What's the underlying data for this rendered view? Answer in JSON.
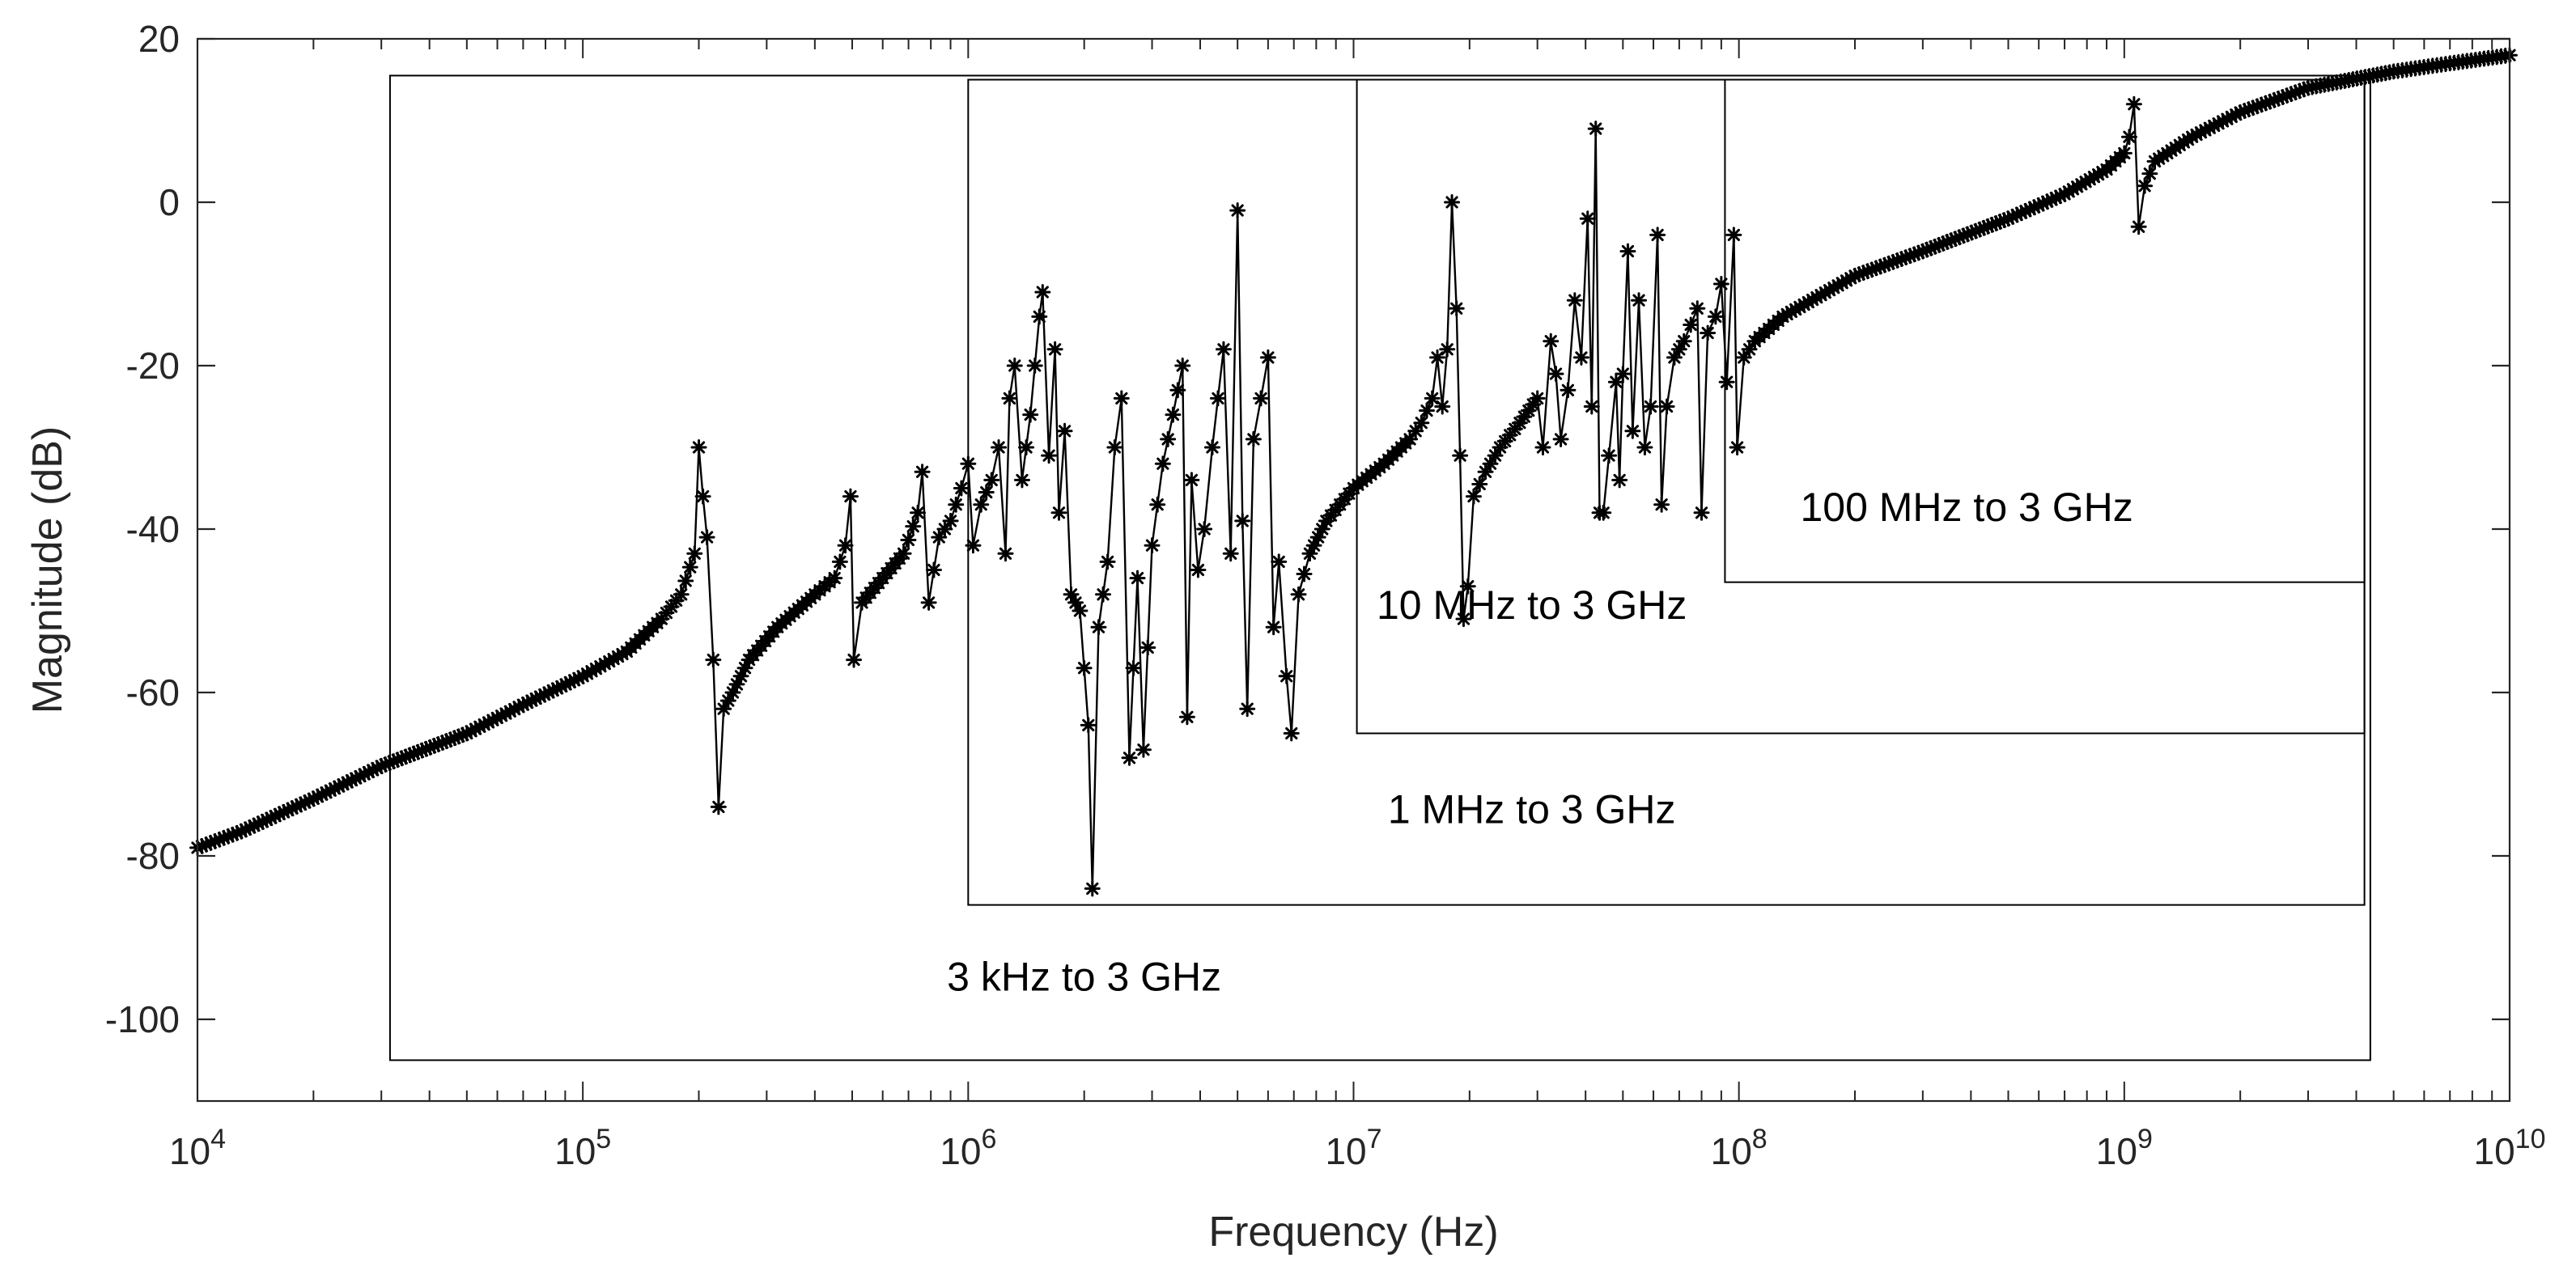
{
  "chart_data": {
    "type": "line",
    "xscale": "log",
    "xlabel": "Frequency (Hz)",
    "ylabel": "Magnitude (dB)",
    "xlim": [
      10000,
      10000000000
    ],
    "ylim": [
      -110,
      20
    ],
    "yticks": [
      20,
      0,
      -20,
      -40,
      -60,
      -80,
      -100
    ],
    "ytick_labels": [
      "20",
      "0",
      "-20",
      "-40",
      "-60",
      "-80",
      "-100"
    ],
    "xticks": [
      {
        "value": 10000,
        "base": "10",
        "exp": "4"
      },
      {
        "value": 100000,
        "base": "10",
        "exp": "5"
      },
      {
        "value": 1000000,
        "base": "10",
        "exp": "6"
      },
      {
        "value": 10000000,
        "base": "10",
        "exp": "7"
      },
      {
        "value": 100000000,
        "base": "10",
        "exp": "8"
      },
      {
        "value": 1000000000,
        "base": "10",
        "exp": "9"
      },
      {
        "value": 10000000000,
        "base": "10",
        "exp": "10"
      }
    ],
    "marker": "asterisk",
    "color": "#000000",
    "series": [
      {
        "name": "magnitude",
        "points": [
          [
            10000,
            -79
          ],
          [
            13000,
            -77
          ],
          [
            20000,
            -73
          ],
          [
            30000,
            -69
          ],
          [
            50000,
            -65
          ],
          [
            70000,
            -61.5
          ],
          [
            100000,
            -58
          ],
          [
            130000,
            -55
          ],
          [
            160000,
            -51
          ],
          [
            180000,
            -48
          ],
          [
            195000,
            -43
          ],
          [
            200000,
            -30
          ],
          [
            205000,
            -36
          ],
          [
            210000,
            -41
          ],
          [
            218000,
            -56
          ],
          [
            225000,
            -74
          ],
          [
            232000,
            -62
          ],
          [
            245000,
            -60
          ],
          [
            270000,
            -56
          ],
          [
            320000,
            -52
          ],
          [
            400000,
            -48
          ],
          [
            450000,
            -46
          ],
          [
            480000,
            -42
          ],
          [
            495000,
            -36
          ],
          [
            505000,
            -56
          ],
          [
            530000,
            -49
          ],
          [
            600000,
            -46
          ],
          [
            680000,
            -43
          ],
          [
            740000,
            -38
          ],
          [
            760000,
            -33
          ],
          [
            790000,
            -49
          ],
          [
            840000,
            -41
          ],
          [
            900000,
            -39
          ],
          [
            960000,
            -35
          ],
          [
            1000000,
            -32
          ],
          [
            1030000,
            -42
          ],
          [
            1080000,
            -37
          ],
          [
            1150000,
            -34
          ],
          [
            1200000,
            -30
          ],
          [
            1250000,
            -43
          ],
          [
            1280000,
            -24
          ],
          [
            1320000,
            -20
          ],
          [
            1380000,
            -34
          ],
          [
            1450000,
            -26
          ],
          [
            1530000,
            -14
          ],
          [
            1560000,
            -11
          ],
          [
            1620000,
            -31
          ],
          [
            1680000,
            -18
          ],
          [
            1720000,
            -38
          ],
          [
            1780000,
            -28
          ],
          [
            1850000,
            -48
          ],
          [
            1950000,
            -50
          ],
          [
            2050000,
            -64
          ],
          [
            2100000,
            -84
          ],
          [
            2180000,
            -52
          ],
          [
            2300000,
            -44
          ],
          [
            2400000,
            -30
          ],
          [
            2500000,
            -24
          ],
          [
            2620000,
            -68
          ],
          [
            2750000,
            -46
          ],
          [
            2850000,
            -67
          ],
          [
            3000000,
            -42
          ],
          [
            3200000,
            -32
          ],
          [
            3400000,
            -26
          ],
          [
            3600000,
            -20
          ],
          [
            3700000,
            -63
          ],
          [
            3800000,
            -34
          ],
          [
            3950000,
            -45
          ],
          [
            4100000,
            -40
          ],
          [
            4300000,
            -30
          ],
          [
            4600000,
            -18
          ],
          [
            4800000,
            -43
          ],
          [
            5000000,
            -1
          ],
          [
            5150000,
            -39
          ],
          [
            5300000,
            -62
          ],
          [
            5500000,
            -29
          ],
          [
            5750000,
            -24
          ],
          [
            6000000,
            -19
          ],
          [
            6200000,
            -52
          ],
          [
            6400000,
            -44
          ],
          [
            6700000,
            -58
          ],
          [
            6900000,
            -65
          ],
          [
            7200000,
            -48
          ],
          [
            7700000,
            -43
          ],
          [
            8500000,
            -39
          ],
          [
            10000000,
            -35
          ],
          [
            12000000,
            -32
          ],
          [
            14000000,
            -29
          ],
          [
            15000000,
            -27
          ],
          [
            16000000,
            -24
          ],
          [
            16500000,
            -19
          ],
          [
            17000000,
            -25
          ],
          [
            17500000,
            -18
          ],
          [
            18000000,
            0
          ],
          [
            18500000,
            -13
          ],
          [
            18900000,
            -31
          ],
          [
            19300000,
            -51
          ],
          [
            19800000,
            -47
          ],
          [
            20500000,
            -36
          ],
          [
            22000000,
            -33
          ],
          [
            24000000,
            -30
          ],
          [
            27000000,
            -27
          ],
          [
            30000000,
            -24
          ],
          [
            31000000,
            -30
          ],
          [
            32500000,
            -17
          ],
          [
            33500000,
            -21
          ],
          [
            34500000,
            -29
          ],
          [
            36000000,
            -23
          ],
          [
            37500000,
            -12
          ],
          [
            39000000,
            -19
          ],
          [
            40500000,
            -2
          ],
          [
            41500000,
            -25
          ],
          [
            42500000,
            9
          ],
          [
            43500000,
            -38
          ],
          [
            44500000,
            -38
          ],
          [
            46000000,
            -31
          ],
          [
            48000000,
            -22
          ],
          [
            49000000,
            -34
          ],
          [
            50000000,
            -21
          ],
          [
            51500000,
            -6
          ],
          [
            53000000,
            -28
          ],
          [
            55000000,
            -12
          ],
          [
            57000000,
            -30
          ],
          [
            59000000,
            -25
          ],
          [
            61500000,
            -4
          ],
          [
            63000000,
            -37
          ],
          [
            65000000,
            -25
          ],
          [
            68000000,
            -19
          ],
          [
            72000000,
            -17
          ],
          [
            75000000,
            -15
          ],
          [
            78000000,
            -13
          ],
          [
            80000000,
            -38
          ],
          [
            83000000,
            -16
          ],
          [
            87000000,
            -14
          ],
          [
            90000000,
            -10
          ],
          [
            93000000,
            -22
          ],
          [
            97000000,
            -4
          ],
          [
            99000000,
            -30
          ],
          [
            103000000,
            -19
          ],
          [
            110000000,
            -17
          ],
          [
            130000000,
            -14
          ],
          [
            200000000,
            -9
          ],
          [
            300000000,
            -6
          ],
          [
            500000000,
            -2
          ],
          [
            700000000,
            1
          ],
          [
            900000000,
            4
          ],
          [
            1000000000,
            6
          ],
          [
            1030000000,
            8
          ],
          [
            1060000000,
            12
          ],
          [
            1090000000,
            -3
          ],
          [
            1130000000,
            2
          ],
          [
            1200000000,
            5
          ],
          [
            1500000000,
            8
          ],
          [
            2000000000,
            11
          ],
          [
            3000000000,
            14
          ],
          [
            5000000000,
            16
          ],
          [
            7000000000,
            17
          ],
          [
            10000000000,
            18
          ]
        ]
      }
    ],
    "boxes": [
      {
        "label": "3 kHz to 3 GHz",
        "x0": 31600,
        "x1": 4350000000,
        "y0": -105,
        "y1": 15.5
      },
      {
        "label": "1 MHz to 3 GHz",
        "x0": 1000000,
        "x1": 4200000000,
        "y0": -86,
        "y1": 15
      },
      {
        "label": "10 MHz to 3 GHz",
        "x0": 10200000,
        "x1": 4200000000,
        "y0": -65,
        "y1": 15
      },
      {
        "label": "100 MHz to 3 GHz",
        "x0": 92000000,
        "x1": 4200000000,
        "y0": -46.5,
        "y1": 15
      }
    ],
    "annotations": [
      {
        "text": "3 kHz to 3 GHz",
        "x": 2000000,
        "y": -96.5
      },
      {
        "text": "1 MHz to 3 GHz",
        "x": 29000000,
        "y": -76
      },
      {
        "text": "10 MHz to 3 GHz",
        "x": 29000000,
        "y": -51
      },
      {
        "text": "100 MHz to 3 GHz",
        "x": 390000000,
        "y": -39
      }
    ]
  }
}
